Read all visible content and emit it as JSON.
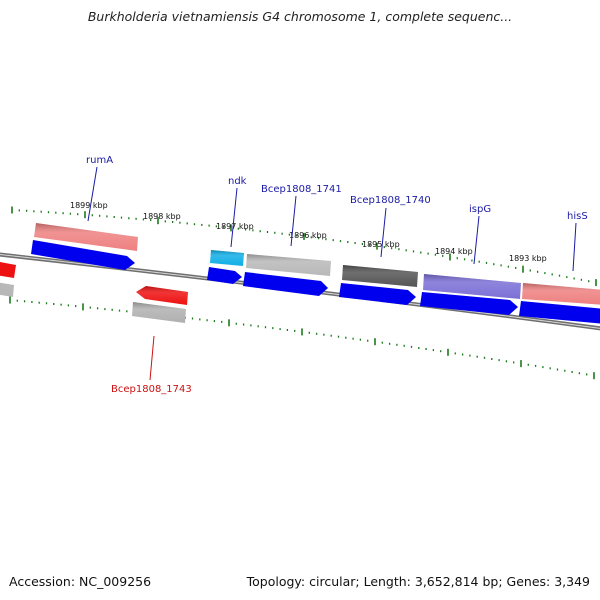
{
  "title": "Burkholderia vietnamiensis G4 chromosome 1, complete sequenc...",
  "accession": "Accession: NC_009256",
  "summary": "Topology: circular; Length: 3,652,814 bp; Genes: 3,349",
  "colors": {
    "backbone": "#777777",
    "ticks": "#1a7a1a",
    "forward_label": "#1a1aa6",
    "reverse_label": "#cc1111",
    "cds": "#0000ee",
    "gene_pink": "#ee8080",
    "gene_gray": "#b8b8b8",
    "gene_dark": "#555555",
    "gene_purple": "#7b6fd6",
    "gene_cyan": "#10aee6",
    "gene_red": "#ee1111"
  },
  "scale": {
    "unit": "kbp",
    "labels": [
      "1899 kbp",
      "1898 kbp",
      "1897 kbp",
      "1896 kbp",
      "1895 kbp",
      "1894 kbp",
      "1893 kbp"
    ]
  },
  "genes": [
    {
      "name": "rumA",
      "strand": "forward",
      "color": "gene_pink"
    },
    {
      "name": "ndk",
      "strand": "forward",
      "color": "gene_cyan"
    },
    {
      "name": "Bcep1808_1741",
      "strand": "forward",
      "color": "gene_gray"
    },
    {
      "name": "Bcep1808_1740",
      "strand": "forward",
      "color": "gene_dark"
    },
    {
      "name": "ispG",
      "strand": "forward",
      "color": "gene_purple"
    },
    {
      "name": "hisS",
      "strand": "forward",
      "color": "gene_pink"
    },
    {
      "name": "Bcep1808_1743",
      "strand": "reverse",
      "color": "gene_red"
    }
  ]
}
